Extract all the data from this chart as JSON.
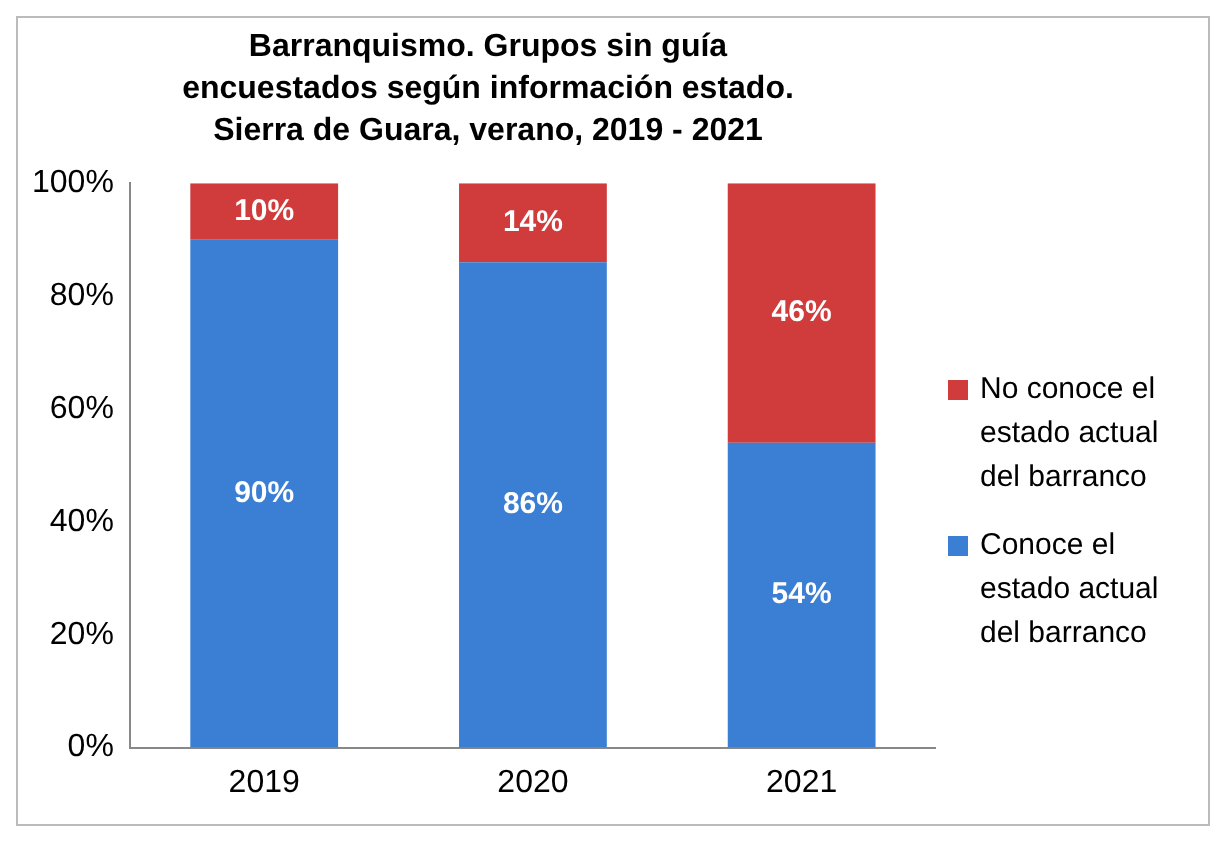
{
  "chart_data": {
    "type": "bar",
    "title": "Barranquismo. Grupos sin guía encuestados según información estado. Sierra de Guara, verano, 2019 - 2021",
    "categories": [
      "2019",
      "2020",
      "2021"
    ],
    "stacked": true,
    "series": [
      {
        "name": "Conoce el estado actual del barranco",
        "color": "#3a7fd3",
        "values": [
          90,
          86,
          54
        ],
        "value_labels": [
          "90%",
          "86%",
          "54%"
        ]
      },
      {
        "name": "No conoce el estado actual del barranco",
        "color": "#d03c3c",
        "values": [
          10,
          14,
          46
        ],
        "value_labels": [
          "10%",
          "14%",
          "46%"
        ]
      }
    ],
    "ylim": [
      0,
      100
    ],
    "yticks": [
      {
        "value": 0,
        "label": "0%"
      },
      {
        "value": 20,
        "label": "20%"
      },
      {
        "value": 40,
        "label": "40%"
      },
      {
        "value": 60,
        "label": "60%"
      },
      {
        "value": 80,
        "label": "80%"
      },
      {
        "value": 100,
        "label": "100%"
      }
    ],
    "grid": false,
    "legend": "right"
  }
}
